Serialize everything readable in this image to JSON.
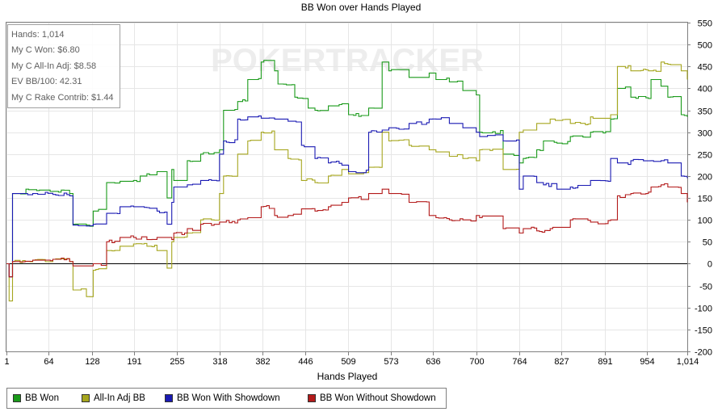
{
  "chart_data": {
    "type": "line",
    "title": "BB Won over Hands Played",
    "xlabel": "Hands Played",
    "ylabel": "",
    "xlim": [
      1,
      1014
    ],
    "ylim": [
      -200,
      550
    ],
    "x_ticks": [
      "1",
      "64",
      "128",
      "191",
      "255",
      "318",
      "382",
      "446",
      "509",
      "573",
      "636",
      "700",
      "764",
      "827",
      "891",
      "954",
      "1,014"
    ],
    "x_tick_values": [
      1,
      64,
      128,
      191,
      255,
      318,
      382,
      446,
      509,
      573,
      636,
      700,
      764,
      827,
      891,
      954,
      1014
    ],
    "y_ticks": [
      -200,
      -150,
      -100,
      -50,
      0,
      50,
      100,
      150,
      200,
      250,
      300,
      350,
      400,
      450,
      500,
      550
    ],
    "grid": true,
    "legend_position": "bottom",
    "watermark": "POKERTRACKER",
    "stats": [
      "Hands: 1,014",
      "My C Won: $6.80",
      "My C All-In Adj: $8.58",
      "EV BB/100: 42.31",
      "My C Rake Contrib: $1.44"
    ],
    "series": [
      {
        "name": "BB Won",
        "color": "#1a9a1a",
        "x": [
          1,
          5,
          10,
          30,
          50,
          70,
          95,
          100,
          120,
          130,
          150,
          170,
          190,
          200,
          210,
          225,
          240,
          247,
          250,
          270,
          290,
          318,
          324,
          345,
          360,
          380,
          400,
          405,
          430,
          450,
          460,
          480,
          500,
          510,
          540,
          560,
          570,
          600,
          630,
          640,
          660,
          680,
          700,
          705,
          740,
          764,
          770,
          790,
          800,
          820,
          840,
          870,
          900,
          910,
          930,
          960,
          975,
          985,
          1005,
          1014
        ],
        "y": [
          0,
          -30,
          160,
          170,
          168,
          165,
          160,
          90,
          88,
          120,
          185,
          188,
          190,
          200,
          205,
          210,
          150,
          215,
          190,
          235,
          250,
          260,
          350,
          370,
          420,
          460,
          440,
          410,
          380,
          355,
          350,
          360,
          365,
          340,
          355,
          460,
          440,
          425,
          435,
          420,
          415,
          395,
          385,
          300,
          250,
          230,
          240,
          260,
          280,
          275,
          290,
          300,
          330,
          400,
          380,
          420,
          405,
          380,
          340,
          335
        ]
      },
      {
        "name": "All-In Adj BB",
        "color": "#a6a61e",
        "x": [
          1,
          5,
          10,
          40,
          70,
          95,
          100,
          120,
          130,
          150,
          170,
          190,
          210,
          225,
          240,
          247,
          250,
          270,
          290,
          318,
          324,
          345,
          360,
          380,
          400,
          420,
          440,
          460,
          480,
          500,
          510,
          540,
          560,
          570,
          600,
          630,
          640,
          660,
          680,
          700,
          705,
          740,
          764,
          770,
          790,
          810,
          840,
          870,
          900,
          910,
          930,
          960,
          975,
          985,
          1005,
          1014
        ],
        "y": [
          0,
          -85,
          5,
          8,
          10,
          5,
          -60,
          -75,
          -15,
          30,
          40,
          45,
          40,
          30,
          -10,
          50,
          60,
          70,
          100,
          160,
          200,
          250,
          280,
          300,
          260,
          240,
          190,
          185,
          200,
          215,
          205,
          220,
          300,
          280,
          270,
          260,
          255,
          245,
          240,
          235,
          260,
          215,
          300,
          305,
          320,
          330,
          320,
          335,
          340,
          450,
          440,
          440,
          460,
          455,
          440,
          420
        ]
      },
      {
        "name": "BB Won With Showdown",
        "color": "#1a1ab3",
        "x": [
          1,
          5,
          10,
          40,
          70,
          95,
          100,
          120,
          130,
          150,
          170,
          190,
          210,
          225,
          240,
          247,
          250,
          270,
          290,
          318,
          324,
          345,
          360,
          380,
          400,
          420,
          440,
          460,
          480,
          500,
          510,
          540,
          560,
          570,
          600,
          630,
          640,
          660,
          680,
          700,
          705,
          740,
          764,
          770,
          790,
          800,
          820,
          840,
          870,
          900,
          910,
          930,
          960,
          975,
          985,
          1005,
          1014
        ],
        "y": [
          0,
          -30,
          160,
          160,
          158,
          155,
          88,
          86,
          90,
          115,
          130,
          130,
          128,
          120,
          90,
          140,
          175,
          180,
          190,
          250,
          280,
          330,
          335,
          332,
          330,
          325,
          270,
          240,
          230,
          225,
          210,
          300,
          305,
          310,
          320,
          330,
          330,
          320,
          310,
          300,
          290,
          280,
          170,
          200,
          185,
          180,
          170,
          175,
          190,
          240,
          230,
          235,
          235,
          235,
          230,
          200,
          195
        ]
      },
      {
        "name": "BB Won Without Showdown",
        "color": "#b31a1a",
        "x": [
          1,
          5,
          10,
          40,
          70,
          95,
          100,
          120,
          130,
          150,
          170,
          190,
          210,
          225,
          240,
          247,
          250,
          270,
          290,
          318,
          324,
          345,
          360,
          380,
          400,
          420,
          440,
          460,
          480,
          500,
          510,
          540,
          560,
          570,
          600,
          630,
          640,
          660,
          680,
          700,
          705,
          740,
          764,
          770,
          790,
          810,
          840,
          870,
          900,
          910,
          930,
          960,
          975,
          985,
          1005,
          1014
        ],
        "y": [
          0,
          -30,
          5,
          8,
          10,
          5,
          -5,
          -5,
          0,
          50,
          60,
          60,
          55,
          60,
          60,
          55,
          70,
          80,
          90,
          95,
          95,
          100,
          105,
          130,
          110,
          110,
          125,
          120,
          130,
          140,
          150,
          160,
          170,
          160,
          140,
          110,
          105,
          100,
          100,
          110,
          105,
          80,
          70,
          80,
          75,
          80,
          100,
          95,
          100,
          155,
          160,
          175,
          180,
          175,
          160,
          140
        ]
      }
    ]
  }
}
